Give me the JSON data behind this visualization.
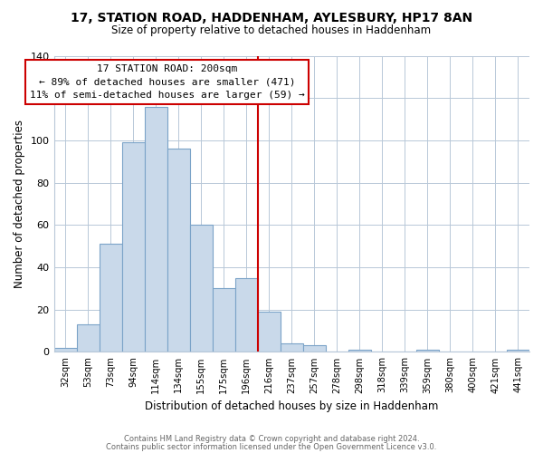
{
  "title": "17, STATION ROAD, HADDENHAM, AYLESBURY, HP17 8AN",
  "subtitle": "Size of property relative to detached houses in Haddenham",
  "xlabel": "Distribution of detached houses by size in Haddenham",
  "ylabel": "Number of detached properties",
  "bar_values": [
    2,
    13,
    51,
    99,
    116,
    96,
    60,
    30,
    35,
    19,
    4,
    3,
    0,
    1,
    0,
    0,
    1,
    0,
    0,
    0,
    1
  ],
  "bar_labels": [
    "32sqm",
    "53sqm",
    "73sqm",
    "94sqm",
    "114sqm",
    "134sqm",
    "155sqm",
    "175sqm",
    "196sqm",
    "216sqm",
    "237sqm",
    "257sqm",
    "278sqm",
    "298sqm",
    "318sqm",
    "339sqm",
    "359sqm",
    "380sqm",
    "400sqm",
    "421sqm",
    "441sqm"
  ],
  "bar_color": "#c9d9ea",
  "bar_edge_color": "#7ba3c8",
  "property_line_x": 8.5,
  "property_line_color": "#cc0000",
  "annotation_box_color": "#cc0000",
  "annotation_title": "17 STATION ROAD: 200sqm",
  "annotation_line2": "← 89% of detached houses are smaller (471)",
  "annotation_line3": "11% of semi-detached houses are larger (59) →",
  "ylim": [
    0,
    140
  ],
  "yticks": [
    0,
    20,
    40,
    60,
    80,
    100,
    120,
    140
  ],
  "footer_line1": "Contains HM Land Registry data © Crown copyright and database right 2024.",
  "footer_line2": "Contains public sector information licensed under the Open Government Licence v3.0.",
  "background_color": "#ffffff",
  "grid_color": "#b8c8d8"
}
